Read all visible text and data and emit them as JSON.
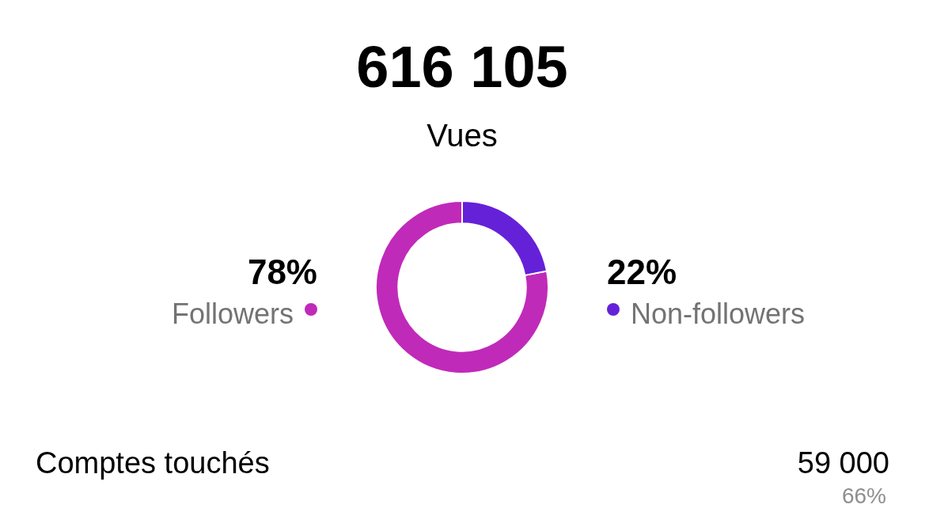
{
  "chart_data": {
    "type": "donut",
    "title": "616 105",
    "subtitle": "Vues",
    "categories": [
      "Followers",
      "Non-followers"
    ],
    "values": [
      78,
      22
    ],
    "colors": [
      "#c02ab9",
      "#6521d8"
    ],
    "value_labels": [
      "78%",
      "22%"
    ],
    "annotations": [
      "Comptes touchés",
      "59 000",
      "66%"
    ]
  }
}
